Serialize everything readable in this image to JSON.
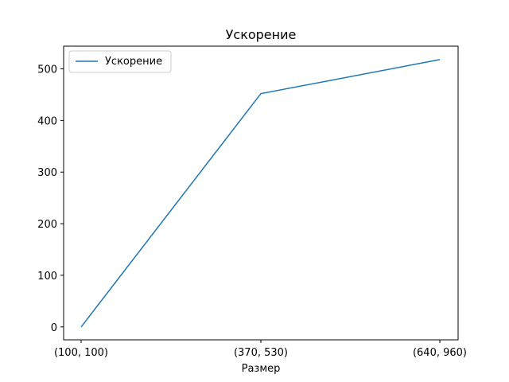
{
  "chart_data": {
    "type": "line",
    "title": "Ускорение",
    "xlabel": "Размер",
    "ylabel": "",
    "categories": [
      "(100, 100)",
      "(370, 530)",
      "(640, 960)"
    ],
    "series": [
      {
        "name": "Ускорение",
        "values": [
          0,
          452,
          518
        ]
      }
    ],
    "ylim": [
      -25,
      544
    ],
    "yticks": [
      0,
      100,
      200,
      300,
      400,
      500
    ],
    "grid": false,
    "legend": "top-left",
    "colors": {
      "series": "#1f77b4",
      "axes": "#000000"
    }
  }
}
